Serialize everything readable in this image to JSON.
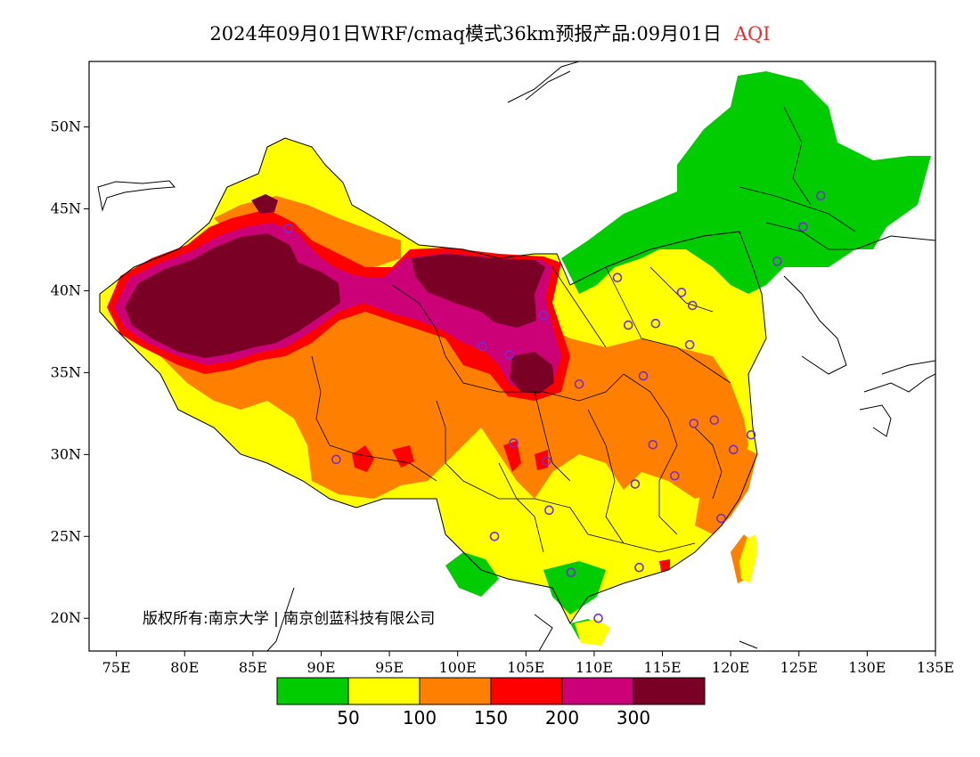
{
  "title": {
    "main": "2024年09月01日WRF/cmaq模式36km预报产品:09月01日",
    "variable": "AQI"
  },
  "axes": {
    "x": {
      "unit": "E",
      "ticks": [
        75,
        80,
        85,
        90,
        95,
        100,
        105,
        110,
        115,
        120,
        125,
        130,
        135
      ],
      "labels": [
        "75E",
        "80E",
        "85E",
        "90E",
        "95E",
        "100E",
        "105E",
        "110E",
        "115E",
        "120E",
        "125E",
        "130E",
        "135E"
      ],
      "range": [
        73,
        135
      ]
    },
    "y": {
      "unit": "N",
      "ticks": [
        20,
        25,
        30,
        35,
        40,
        45,
        50
      ],
      "labels": [
        "20N",
        "25N",
        "30N",
        "35N",
        "40N",
        "45N",
        "50N"
      ],
      "range": [
        18,
        54
      ]
    }
  },
  "legend": {
    "colors": [
      "#00cc00",
      "#ffff00",
      "#ff8000",
      "#ff0000",
      "#cc0077",
      "#7a0026"
    ],
    "labels": [
      "50",
      "100",
      "150",
      "200",
      "300"
    ]
  },
  "copyright": "版权所有:南京大学 | 南京创蓝科技有限公司",
  "stations": [
    [
      87.6,
      43.8
    ],
    [
      91.1,
      29.7
    ],
    [
      101.8,
      36.6
    ],
    [
      103.8,
      36.1
    ],
    [
      106.3,
      38.5
    ],
    [
      104.1,
      30.7
    ],
    [
      106.5,
      29.6
    ],
    [
      106.7,
      26.6
    ],
    [
      102.7,
      25.0
    ],
    [
      108.9,
      34.3
    ],
    [
      111.7,
      40.8
    ],
    [
      112.5,
      37.9
    ],
    [
      114.5,
      38.0
    ],
    [
      116.4,
      39.9
    ],
    [
      117.2,
      39.1
    ],
    [
      117.0,
      36.7
    ],
    [
      113.6,
      34.8
    ],
    [
      117.3,
      31.9
    ],
    [
      114.3,
      30.6
    ],
    [
      113.0,
      28.2
    ],
    [
      115.9,
      28.7
    ],
    [
      118.8,
      32.1
    ],
    [
      120.2,
      30.3
    ],
    [
      121.5,
      31.2
    ],
    [
      119.3,
      26.1
    ],
    [
      113.3,
      23.1
    ],
    [
      108.3,
      22.8
    ],
    [
      110.3,
      20.0
    ],
    [
      123.4,
      41.8
    ],
    [
      125.3,
      43.9
    ],
    [
      126.6,
      45.8
    ]
  ]
}
